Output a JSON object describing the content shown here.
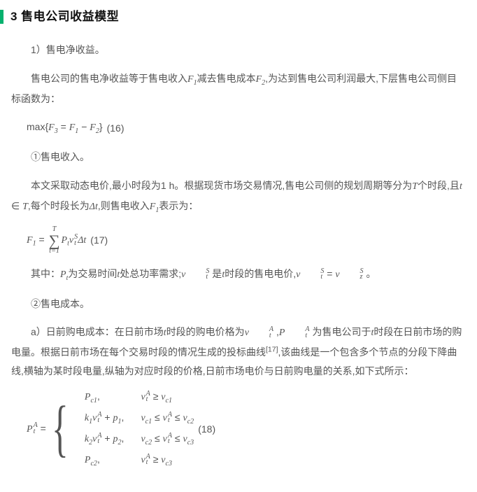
{
  "colors": {
    "accent": "#06b16e",
    "text_body": "#555555",
    "text_heading": "#111111",
    "background": "#ffffff"
  },
  "typography": {
    "body_fontsize_pt": 10.5,
    "heading_fontsize_pt": 13,
    "font_family": "Microsoft YaHei / SimSun",
    "math_font": "Times New Roman (italic)"
  },
  "heading": "3 售电公司收益模型",
  "p1": "1）售电净收益。",
  "p2_pre": "售电公司的售电净收益等于售电收入",
  "p2_F1": "F",
  "p2_F1_sub": "1",
  "p2_mid1": "减去售电成本",
  "p2_F2": "F",
  "p2_F2_sub": "2",
  "p2_post": ",为达到售电公司利润最大,下层售电公司侧目标函数为：",
  "eq16": {
    "max": "max",
    "F3": "F",
    "F3_sub": "3",
    "eq": " = ",
    "F1": "F",
    "F1_sub": "1",
    "minus": " − ",
    "F2": "F",
    "F2_sub": "2",
    "num": "(16)"
  },
  "p3": "①售电收入。",
  "p4_pre": "本文采取动态电价,最小时段为1 h。根据现货市场交易情况,售电公司侧的规划周期等分为",
  "p4_T": "T",
  "p4_mid1": "个时段,且",
  "p4_t": "t",
  "p4_in": " ∈ ",
  "p4_T2": "T",
  "p4_mid2": ",每个时段长为",
  "p4_Dt": "Δt",
  "p4_mid3": ",则售电收入",
  "p4_F1": "F",
  "p4_F1_sub": "1",
  "p4_post": "表示为：",
  "eq17": {
    "F1": "F",
    "F1_sub": "1",
    "eq": " = ",
    "sum_upper": "T",
    "sum_lower": "t=1",
    "Pt": "P",
    "Pt_sub": "t",
    "vt": "v",
    "vt_sup": "S",
    "vt_sub": "t",
    "Dt": "Δt",
    "num": "(17)"
  },
  "p5_pre": "其中：",
  "p5_Pt": "P",
  "p5_Pt_sub": "t",
  "p5_mid1": "为交易时间",
  "p5_t": "t",
  "p5_mid2": "处总功率需求;",
  "p5_vtS": "v",
  "p5_vtS_sup": "S",
  "p5_vtS_sub": "t",
  "p5_mid3": " 是",
  "p5_t2": "t",
  "p5_mid4": "时段的售电电价,",
  "p5_vtS2": "v",
  "p5_vtS2_sup": "S",
  "p5_vtS2_sub": "t",
  "p5_eq": " = ",
  "p5_vzS": "v",
  "p5_vzS_sup": "S",
  "p5_vzS_sub": "z",
  "p5_post": " 。",
  "p6": "②售电成本。",
  "p7_pre": "a）日前购电成本：在日前市场",
  "p7_t": "t",
  "p7_mid1": "时段的购电价格为",
  "p7_vtA": "v",
  "p7_vtA_sup": "A",
  "p7_vtA_sub": "t",
  "p7_mid2": " ,",
  "p7_PtA": "P",
  "p7_PtA_sup": "A",
  "p7_PtA_sub": "t",
  "p7_mid3": " 为售电公司于",
  "p7_t2": "t",
  "p7_mid4": "时段在日前市场的购电量。根据日前市场在每个交易时段的情况生成的投标曲线",
  "p7_ref": "[17]",
  "p7_post": ",该曲线是一个包含多个节点的分段下降曲线,横轴为某时段电量,纵轴为对应时段的价格,日前市场电价与日前购电量的关系,如下式所示：",
  "eq18": {
    "lhs_P": "P",
    "lhs_sup": "A",
    "lhs_sub": "t",
    "eq": " = ",
    "row1_l_P": "P",
    "row1_l_sub": "c1",
    "row1_l_comma": ",",
    "row1_r_v": "v",
    "row1_r_sup": "A",
    "row1_r_sub": "t",
    "row1_r_ge": " ≥ ",
    "row1_r_vc1": "v",
    "row1_r_vc1_sub": "c1",
    "row2_l_k1": "k",
    "row2_l_k1_sub": "1",
    "row2_l_v": "v",
    "row2_l_v_sup": "A",
    "row2_l_v_sub": "t",
    "row2_l_plus": " + ",
    "row2_l_p1": "p",
    "row2_l_p1_sub": "1",
    "row2_l_comma": ",",
    "row2_r_vc1": "v",
    "row2_r_vc1_sub": "c1",
    "row2_r_le1": " ≤ ",
    "row2_r_v": "v",
    "row2_r_v_sup": "A",
    "row2_r_v_sub": "t",
    "row2_r_le2": " ≤ ",
    "row2_r_vc2": "v",
    "row2_r_vc2_sub": "c2",
    "row3_l_k2": "k",
    "row3_l_k2_sub": "2",
    "row3_l_v": "v",
    "row3_l_v_sup": "A",
    "row3_l_v_sub": "t",
    "row3_l_plus": " + ",
    "row3_l_p2": "p",
    "row3_l_p2_sub": "2",
    "row3_l_comma": ",",
    "row3_r_vc2": "v",
    "row3_r_vc2_sub": "c2",
    "row3_r_le1": " ≤ ",
    "row3_r_v": "v",
    "row3_r_v_sup": "A",
    "row3_r_v_sub": "t",
    "row3_r_le2": " ≤ ",
    "row3_r_vc3": "v",
    "row3_r_vc3_sub": "c3",
    "row4_l_P": "P",
    "row4_l_sub": "c2",
    "row4_l_comma": ",",
    "row4_r_v": "v",
    "row4_r_sup": "A",
    "row4_r_sub": "t",
    "row4_r_ge": " ≥ ",
    "row4_r_vc3": "v",
    "row4_r_vc3_sub": "c3",
    "num": "(18)"
  }
}
